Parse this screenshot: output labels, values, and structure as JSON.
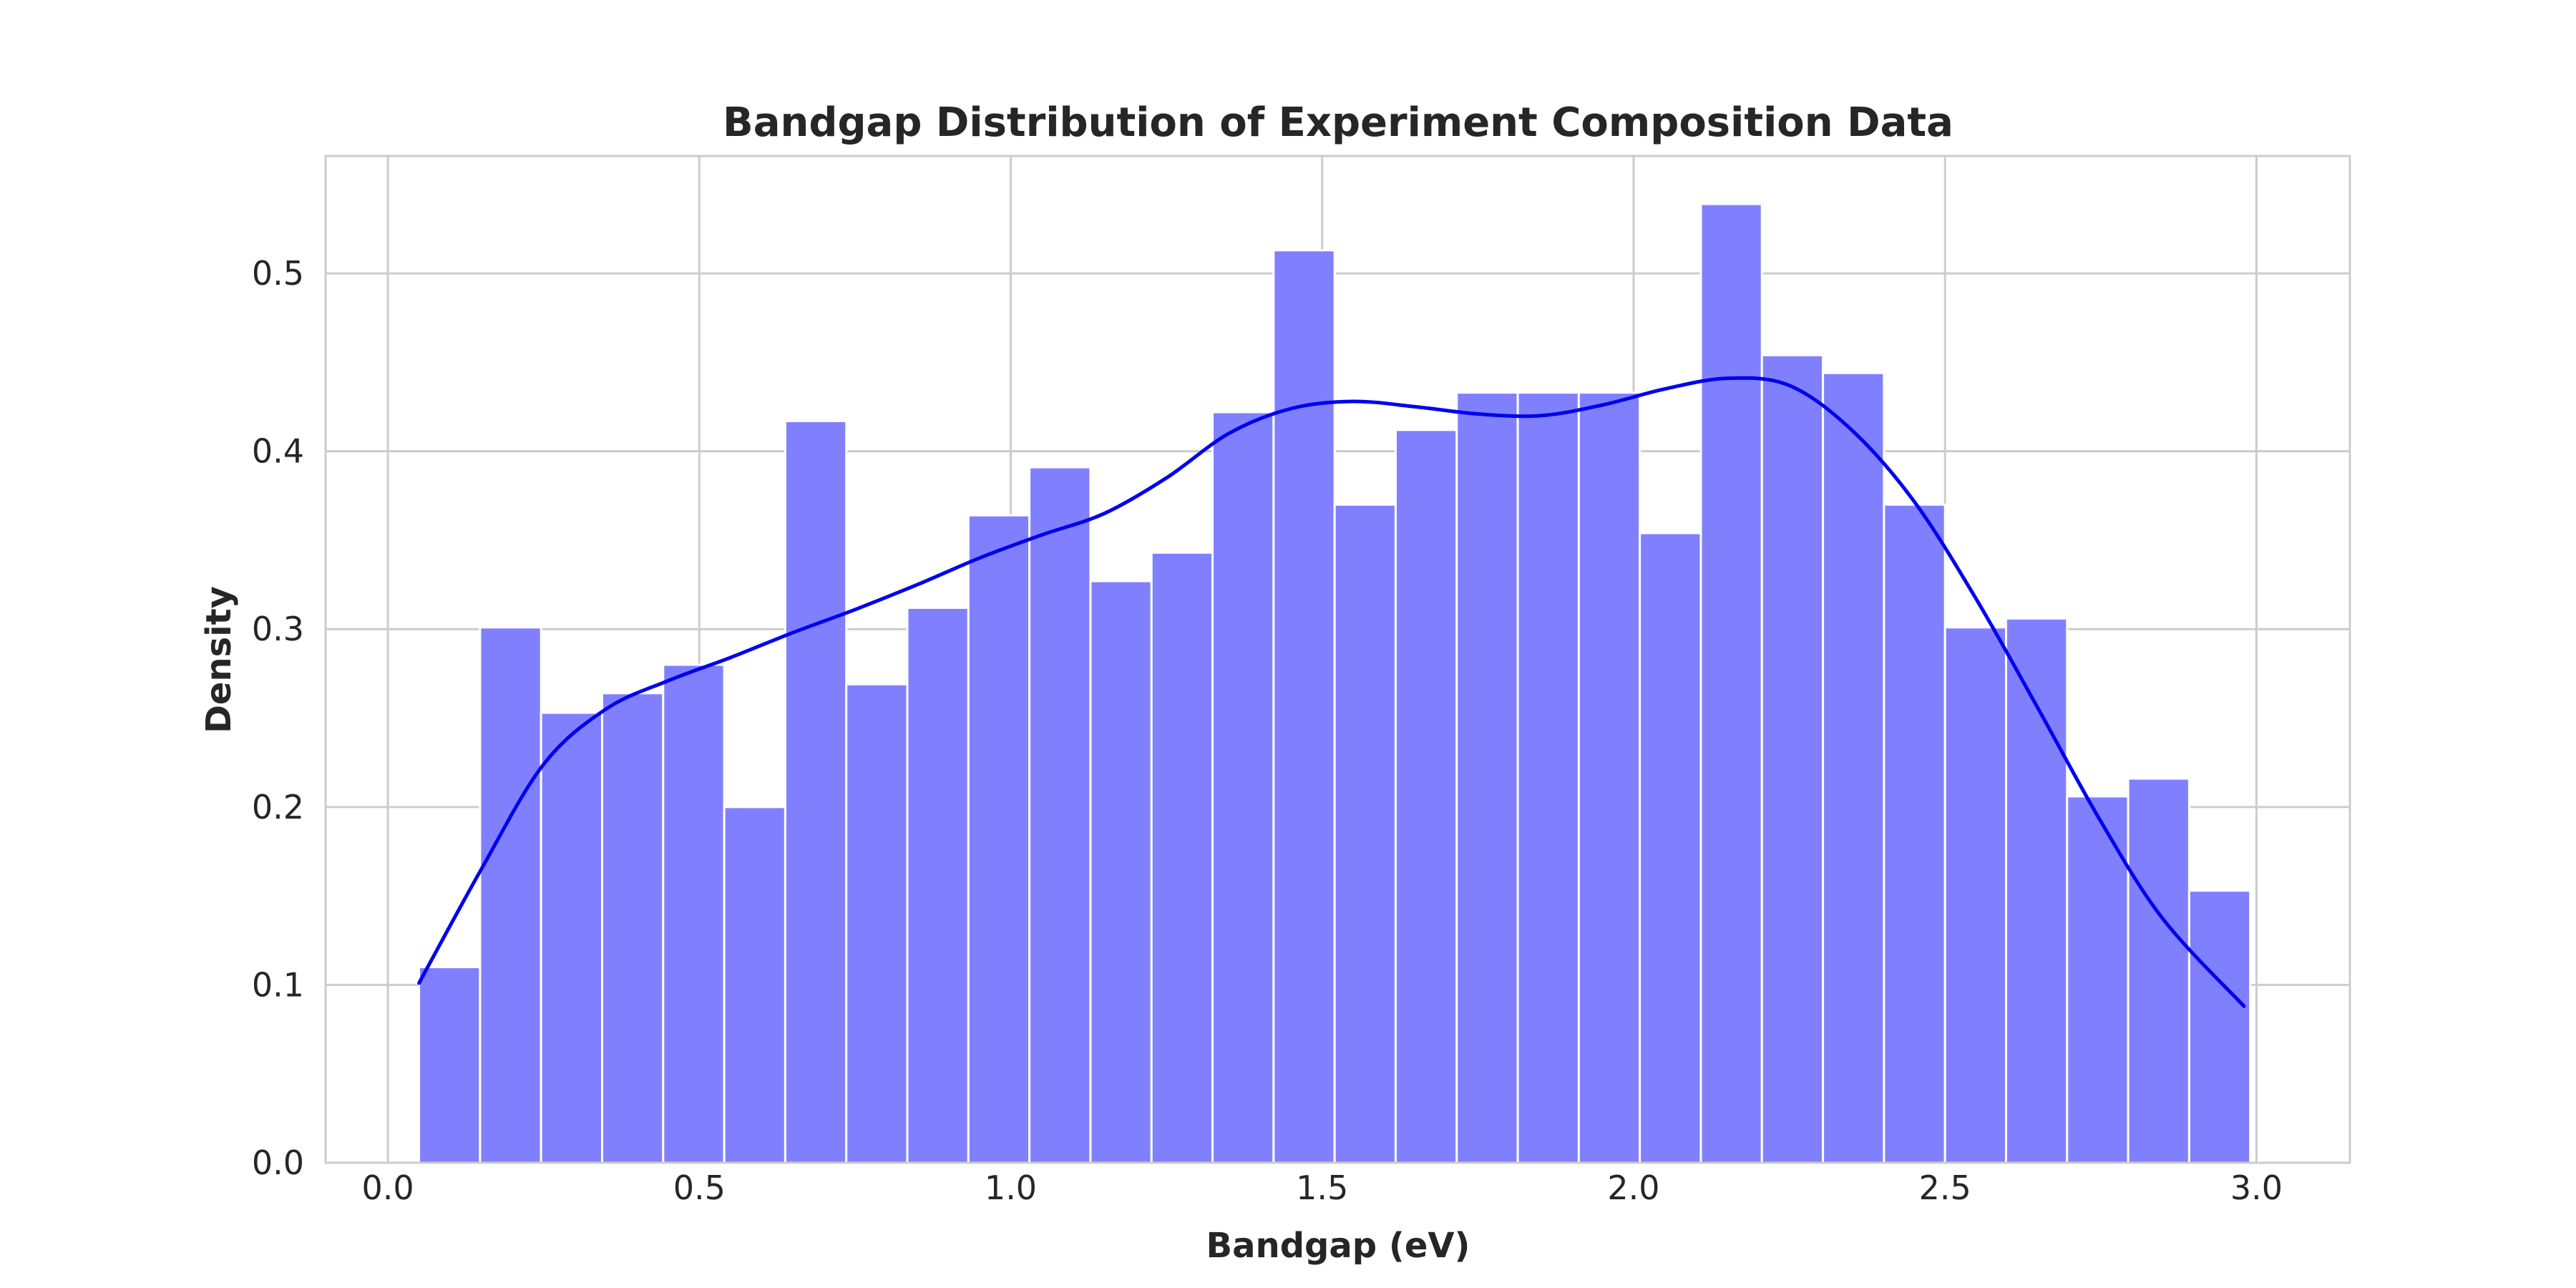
{
  "chart_data": {
    "type": "bar",
    "subtype": "histogram",
    "title": "Bandgap Distribution of Experiment Composition Data",
    "xlabel": "Bandgap (eV)",
    "ylabel": "Density",
    "xlim": [
      -0.1,
      3.15
    ],
    "ylim": [
      0,
      0.566
    ],
    "xticks": [
      0.0,
      0.5,
      1.0,
      1.5,
      2.0,
      2.5,
      3.0
    ],
    "xtick_labels": [
      "0.0",
      "0.5",
      "1.0",
      "1.5",
      "2.0",
      "2.5",
      "3.0"
    ],
    "yticks": [
      0.0,
      0.1,
      0.2,
      0.3,
      0.4,
      0.5
    ],
    "ytick_labels": [
      "0.0",
      "0.1",
      "0.2",
      "0.3",
      "0.4",
      "0.5"
    ],
    "grid": true,
    "legend": "none",
    "bin_start": 0.05,
    "bin_width": 0.098,
    "values": [
      0.11,
      0.301,
      0.253,
      0.264,
      0.28,
      0.2,
      0.417,
      0.269,
      0.312,
      0.364,
      0.391,
      0.327,
      0.343,
      0.422,
      0.513,
      0.37,
      0.412,
      0.433,
      0.433,
      0.433,
      0.354,
      0.539,
      0.454,
      0.444,
      0.37,
      0.301,
      0.306,
      0.206,
      0.216,
      0.153
    ],
    "bar_color": "#8080ff",
    "kde": {
      "color": "#0000ee",
      "x": [
        0.05,
        0.15,
        0.25,
        0.35,
        0.45,
        0.55,
        0.65,
        0.75,
        0.85,
        0.95,
        1.05,
        1.15,
        1.25,
        1.35,
        1.45,
        1.55,
        1.65,
        1.75,
        1.85,
        1.95,
        2.05,
        2.15,
        2.25,
        2.35,
        2.45,
        2.55,
        2.65,
        2.75,
        2.85,
        2.98
      ],
      "y": [
        0.101,
        0.165,
        0.224,
        0.255,
        0.271,
        0.284,
        0.298,
        0.311,
        0.325,
        0.34,
        0.353,
        0.365,
        0.385,
        0.41,
        0.424,
        0.428,
        0.425,
        0.421,
        0.42,
        0.426,
        0.435,
        0.441,
        0.437,
        0.412,
        0.372,
        0.317,
        0.255,
        0.192,
        0.137,
        0.088
      ]
    }
  }
}
